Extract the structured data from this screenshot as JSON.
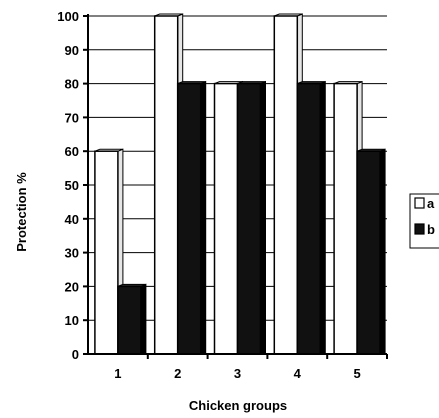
{
  "chart_data": {
    "type": "bar",
    "categories": [
      "1",
      "2",
      "3",
      "4",
      "5"
    ],
    "series": [
      {
        "name": "a",
        "values": [
          60,
          100,
          80,
          100,
          80
        ],
        "color": "#ffffff"
      },
      {
        "name": "b",
        "values": [
          20,
          80,
          80,
          80,
          60
        ],
        "color": "#111111"
      }
    ],
    "xlabel": "Chicken groups",
    "ylabel": "Protection %",
    "ylim": [
      0,
      100
    ],
    "yticks": [
      0,
      10,
      20,
      30,
      40,
      50,
      60,
      70,
      80,
      90,
      100
    ],
    "grid": true,
    "legend_position": "right"
  }
}
